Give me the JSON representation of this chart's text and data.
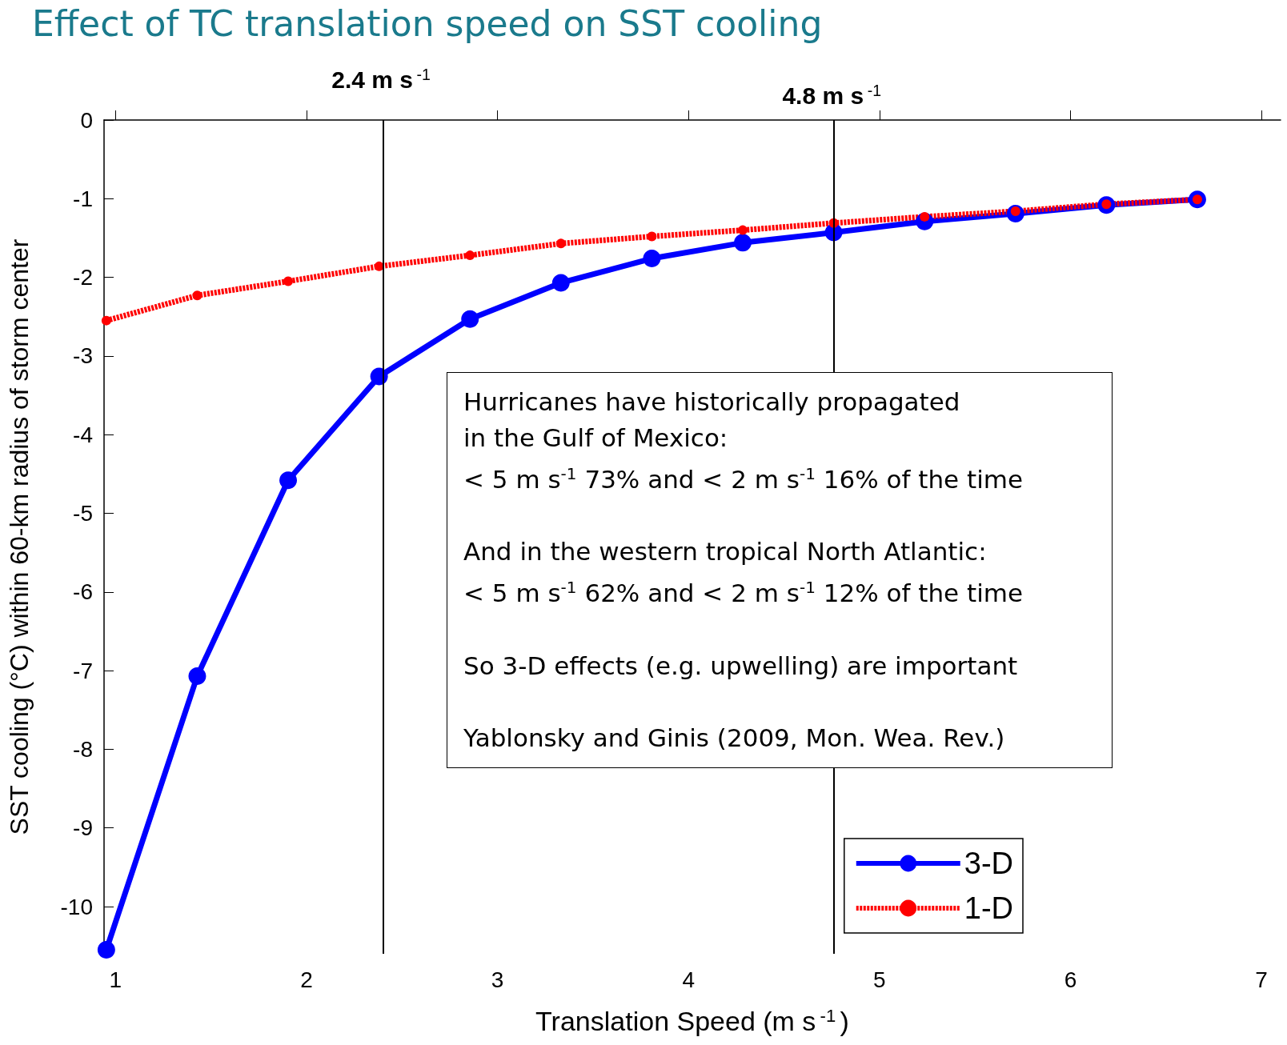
{
  "chart_data": {
    "type": "line",
    "title": "Effect of TC translation speed on SST cooling",
    "xlabel": "Translation Speed (m s$^{-1}$)",
    "ylabel": "SST cooling (°C) within 60-km radius of storm center",
    "x": [
      0.952,
      1.428,
      1.904,
      2.38,
      2.856,
      3.332,
      3.808,
      4.284,
      4.76,
      5.236,
      5.712,
      6.188,
      6.664
    ],
    "series": [
      {
        "name": "3-D",
        "color": "#0000ff",
        "line_style": "solid",
        "values": [
          -10.55,
          -7.07,
          -4.58,
          -3.26,
          -2.53,
          -2.07,
          -1.76,
          -1.56,
          -1.43,
          -1.29,
          -1.19,
          -1.08,
          -1.01
        ]
      },
      {
        "name": "1-D",
        "color": "#ff0000",
        "line_style": "dashed",
        "values": [
          -2.55,
          -2.23,
          -2.05,
          -1.86,
          -1.72,
          -1.57,
          -1.48,
          -1.4,
          -1.31,
          -1.23,
          -1.16,
          -1.07,
          -1.01
        ]
      }
    ],
    "xlim": [
      0.94,
      7.1
    ],
    "xticks": [
      1,
      2,
      3,
      4,
      5,
      6,
      7
    ],
    "ylim": [
      -10.6,
      0
    ],
    "yticks": [
      0,
      -1,
      -2,
      -3,
      -4,
      -5,
      -6,
      -7,
      -8,
      -9,
      -10
    ],
    "ref_lines": [
      {
        "axis": "x",
        "value": 2.4,
        "label": "2.4 m s$^{-1}$",
        "color": "#000000"
      },
      {
        "axis": "x",
        "value": 4.76,
        "label": "4.8 m s$^{-1}$",
        "color": "#000000"
      }
    ],
    "annotations": [
      "Hurricanes have historically propagated\nin the Gulf of Mexico:\n< 5 m s$^{-1}$ 73% and < 2 m s$^{-1}$ 16% of the time",
      "And in the western tropical North Atlantic:\n< 5 m s$^{-1}$ 62% and < 2 m s$^{-1}$ 12% of the time",
      "So 3-D effects (e.g. upwelling) are important",
      "Yablonsky and Ginis (2009, Mon. Wea. Rev.)"
    ],
    "marker": "circle",
    "grid": false,
    "legend": "bottom right"
  }
}
